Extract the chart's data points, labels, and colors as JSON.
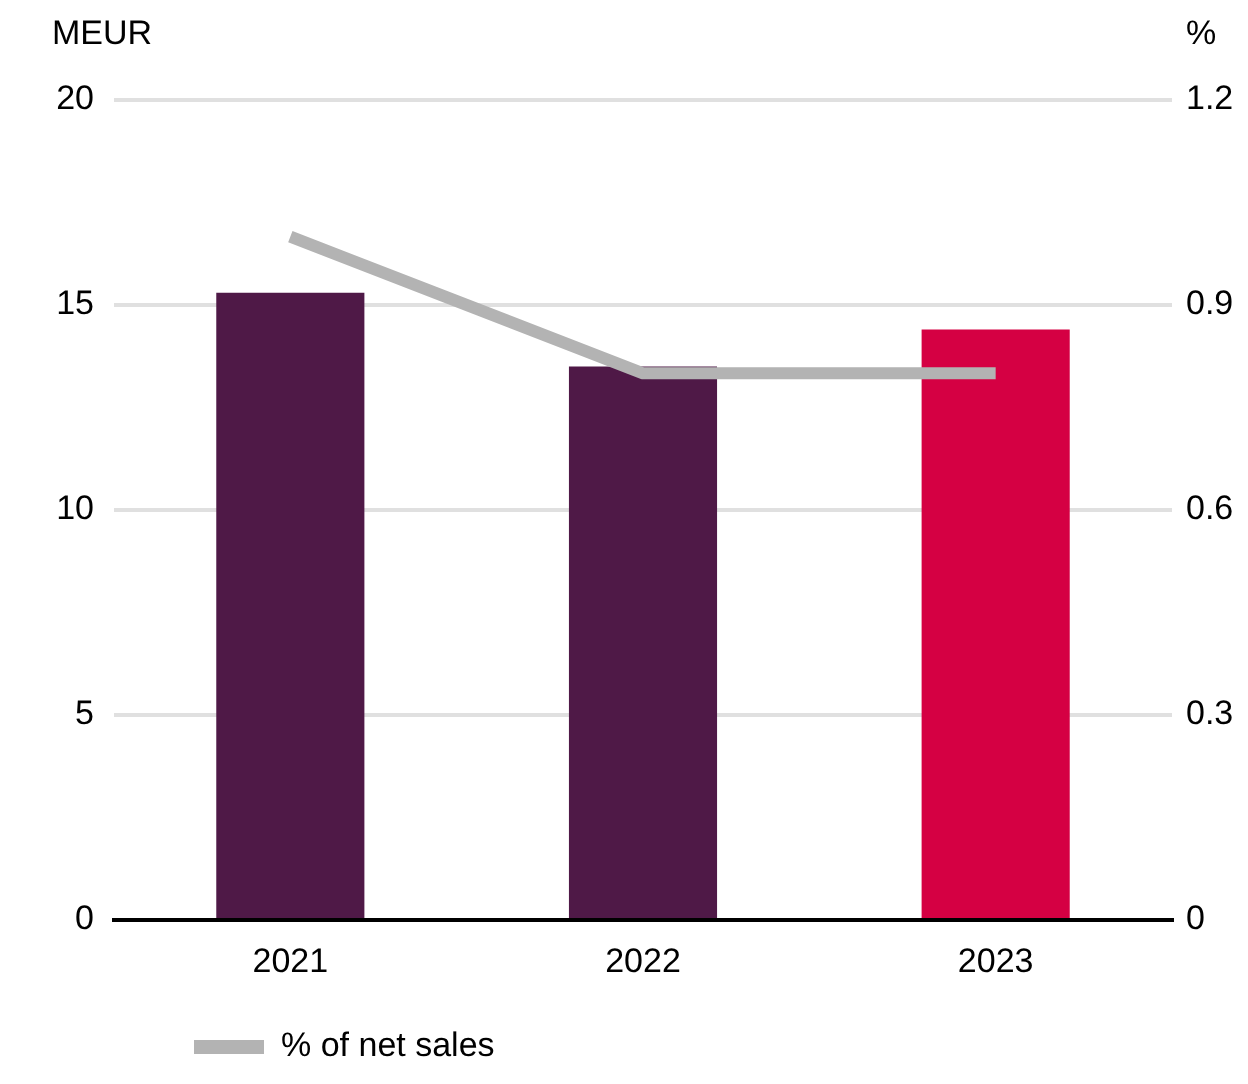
{
  "chart_data": {
    "type": "bar",
    "ylabel": "MEUR",
    "y2label": "%",
    "categories": [
      "2021",
      "2022",
      "2023"
    ],
    "series": [
      {
        "colors": [
          "#4f1947",
          "#4f1947",
          "#d50043"
        ],
        "values": [
          15.3,
          13.5,
          14.4
        ]
      },
      {
        "name": "% of net sales",
        "type": "line",
        "axis": "y2",
        "color": "#b3b3b3",
        "values": [
          1.0,
          0.8,
          0.8
        ]
      }
    ],
    "ylim": [
      0,
      20
    ],
    "yticks": [
      0,
      5,
      10,
      15,
      20
    ],
    "y2lim": [
      0,
      1.2
    ],
    "y2ticks": [
      0,
      0.3,
      0.6,
      0.9,
      1.2
    ],
    "grid": "y",
    "legend": "bottom left",
    "marker": "none"
  }
}
